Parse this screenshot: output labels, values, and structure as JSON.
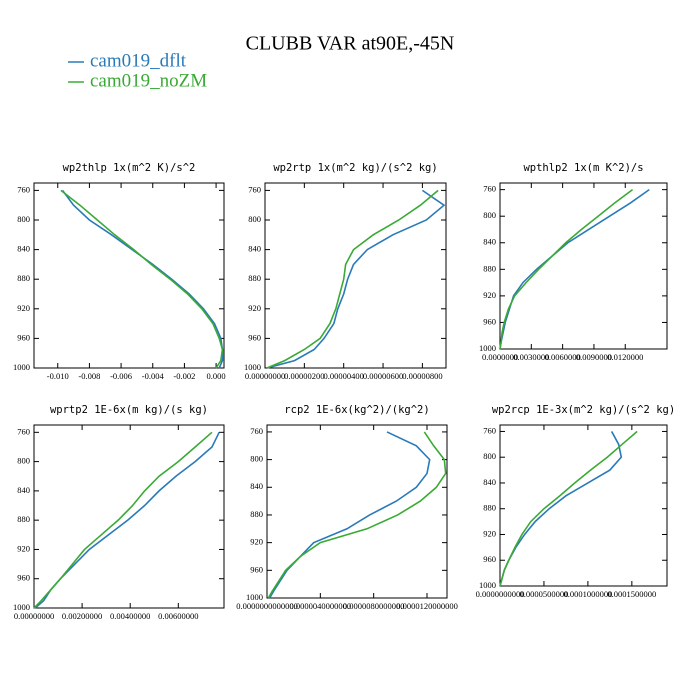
{
  "title": "CLUBB VAR at90E,-45N",
  "chart_data": [
    {
      "type": "line",
      "title": "wp2thlp  1x(m^2 K)/s^2",
      "levels": [
        1000,
        990,
        975,
        960,
        940,
        920,
        900,
        880,
        860,
        840,
        820,
        800,
        780,
        760
      ],
      "series": [
        {
          "name": "cam019_dflt",
          "color": "#2a7ab9",
          "values": [
            0.0002,
            0.0004,
            0.0004,
            0.0003,
            -0.0001,
            -0.0008,
            -0.0017,
            -0.0028,
            -0.004,
            -0.0053,
            -0.0066,
            -0.008,
            -0.009,
            -0.0097
          ]
        },
        {
          "name": "cam019_noZM",
          "color": "#3aaa35",
          "values": [
            0.0,
            0.0003,
            0.0004,
            0.0002,
            -0.0002,
            -0.0009,
            -0.0018,
            -0.0029,
            -0.0041,
            -0.0052,
            -0.0064,
            -0.0075,
            -0.0086,
            -0.0098
          ]
        }
      ],
      "xlim": [
        -0.0115,
        0.0005
      ],
      "xticks": [
        {
          "value": -0.01,
          "label": "-0.010"
        },
        {
          "value": -0.008,
          "label": "-0.008"
        },
        {
          "value": -0.006,
          "label": "-0.006"
        },
        {
          "value": -0.004,
          "label": "-0.004"
        },
        {
          "value": -0.002,
          "label": "-0.002"
        },
        {
          "value": 0,
          "label": "0.000"
        }
      ],
      "ylim": [
        1000,
        750
      ],
      "yticks": [
        760,
        800,
        840,
        880,
        920,
        960,
        1000
      ]
    },
    {
      "type": "line",
      "title": "wp2rtp  1x(m^2 kg)/(s^2 kg)",
      "levels": [
        1000,
        990,
        975,
        960,
        940,
        920,
        900,
        880,
        860,
        840,
        820,
        800,
        780,
        760
      ],
      "series": [
        {
          "name": "cam019_dflt",
          "color": "#2a7ab9",
          "values": [
            1e-07,
            1.5e-06,
            2.5e-06,
            3e-06,
            3.5e-06,
            3.7e-06,
            4e-06,
            4.2e-06,
            4.5e-06,
            5.2e-06,
            6.5e-06,
            8.2e-06,
            9.1e-06,
            8e-06
          ]
        },
        {
          "name": "cam019_noZM",
          "color": "#3aaa35",
          "values": [
            1e-07,
            1e-06,
            2e-06,
            2.8e-06,
            3.3e-06,
            3.6e-06,
            3.8e-06,
            4e-06,
            4.1e-06,
            4.5e-06,
            5.5e-06,
            6.8e-06,
            7.9e-06,
            8.8e-06
          ]
        }
      ],
      "xlim": [
        0,
        9.2e-06
      ],
      "xticks": [
        {
          "value": 0,
          "label": "0.00000000"
        },
        {
          "value": 2e-06,
          "label": "0.00000200"
        },
        {
          "value": 4e-06,
          "label": "0.00000400"
        },
        {
          "value": 6e-06,
          "label": "0.00000600"
        },
        {
          "value": 8e-06,
          "label": "0.00000800"
        }
      ],
      "ylim": [
        1000,
        750
      ],
      "yticks": [
        760,
        800,
        840,
        880,
        920,
        960,
        1000
      ]
    },
    {
      "type": "line",
      "title": "wpthlp2  1x(m K^2)/s",
      "levels": [
        1000,
        990,
        975,
        960,
        940,
        920,
        900,
        880,
        860,
        840,
        820,
        800,
        780,
        760
      ],
      "series": [
        {
          "name": "cam019_dflt",
          "color": "#2a7ab9",
          "values": [
            0,
            0.0001,
            0.0003,
            0.0005,
            0.0009,
            0.0013,
            0.0022,
            0.0035,
            0.005,
            0.0065,
            0.0085,
            0.0105,
            0.0125,
            0.0143
          ]
        },
        {
          "name": "cam019_noZM",
          "color": "#3aaa35",
          "values": [
            0,
            0.0001,
            0.0002,
            0.0004,
            0.0008,
            0.0014,
            0.0025,
            0.0037,
            0.005,
            0.0063,
            0.0078,
            0.0094,
            0.011,
            0.0127
          ]
        }
      ],
      "xlim": [
        0,
        0.016
      ],
      "xticks": [
        {
          "value": 0,
          "label": "0.0000000"
        },
        {
          "value": 0.003,
          "label": "0.0030000"
        },
        {
          "value": 0.006,
          "label": "0.0060000"
        },
        {
          "value": 0.009,
          "label": "0.0090000"
        },
        {
          "value": 0.012,
          "label": "0.0120000"
        }
      ],
      "ylim": [
        1000,
        750
      ],
      "yticks": [
        760,
        800,
        840,
        880,
        920,
        960,
        1000
      ]
    },
    {
      "type": "line",
      "title": "wprtp2  1E-6x(m kg)/(s kg)",
      "levels": [
        1000,
        990,
        975,
        960,
        940,
        920,
        900,
        880,
        860,
        840,
        820,
        800,
        780,
        760
      ],
      "series": [
        {
          "name": "cam019_dflt",
          "color": "#2a7ab9",
          "values": [
            5e-05,
            0.0004,
            0.0007,
            0.0011,
            0.0017,
            0.0023,
            0.0031,
            0.0039,
            0.0046,
            0.0052,
            0.0059,
            0.0067,
            0.0074,
            0.0077
          ]
        },
        {
          "name": "cam019_noZM",
          "color": "#3aaa35",
          "values": [
            0.0,
            0.0003,
            0.0007,
            0.0011,
            0.0016,
            0.0021,
            0.0028,
            0.0035,
            0.0041,
            0.0046,
            0.0052,
            0.006,
            0.0067,
            0.0074
          ]
        }
      ],
      "xlim": [
        0,
        0.0079
      ],
      "xticks": [
        {
          "value": 0,
          "label": "0.00000000"
        },
        {
          "value": 0.002,
          "label": "0.00200000"
        },
        {
          "value": 0.004,
          "label": "0.00400000"
        },
        {
          "value": 0.006,
          "label": "0.00600000"
        }
      ],
      "ylim": [
        1000,
        750
      ],
      "yticks": [
        760,
        800,
        840,
        880,
        920,
        960,
        1000
      ]
    },
    {
      "type": "line",
      "title": "rcp2  1E-6x(kg^2)/(kg^2)",
      "levels": [
        1000,
        990,
        975,
        960,
        940,
        920,
        900,
        880,
        860,
        840,
        820,
        800,
        780,
        760
      ],
      "series": [
        {
          "name": "cam019_dflt",
          "color": "#2a7ab9",
          "values": [
            2e-07,
            5e-07,
            1e-06,
            1.5e-06,
            2.5e-06,
            3.5e-06,
            6e-06,
            7.7e-06,
            9.7e-06,
            1.12e-05,
            1.2e-05,
            1.22e-05,
            1.12e-05,
            9e-06
          ]
        },
        {
          "name": "cam019_noZM",
          "color": "#3aaa35",
          "values": [
            1e-07,
            4e-07,
            9e-07,
            1.4e-06,
            2.5e-06,
            4e-06,
            7.5e-06,
            9.8e-06,
            1.15e-05,
            1.27e-05,
            1.34e-05,
            1.33e-05,
            1.25e-05,
            1.18e-05
          ]
        }
      ],
      "xlim": [
        0,
        1.35e-05
      ],
      "xticks": [
        {
          "value": 0,
          "label": "0.0000000000000"
        },
        {
          "value": 4e-06,
          "label": "0.0000040000000"
        },
        {
          "value": 8e-06,
          "label": "0.0000080000000"
        },
        {
          "value": 1.2e-05,
          "label": "0.0000120000000"
        }
      ],
      "ylim": [
        1000,
        750
      ],
      "yticks": [
        760,
        800,
        840,
        880,
        920,
        960,
        1000
      ]
    },
    {
      "type": "line",
      "title": "wp2rcp  1E-3x(m^2 kg)/(s^2 kg)",
      "levels": [
        1000,
        990,
        975,
        960,
        940,
        920,
        900,
        880,
        860,
        840,
        820,
        800,
        780,
        760
      ],
      "series": [
        {
          "name": "cam019_dflt",
          "color": "#2a7ab9",
          "values": [
            0,
            2e-06,
            5e-06,
            1e-05,
            1.8e-05,
            2.8e-05,
            4e-05,
            5.6e-05,
            7.5e-05,
            0.0001,
            0.000125,
            0.000138,
            0.000135,
            0.000127
          ]
        },
        {
          "name": "cam019_noZM",
          "color": "#3aaa35",
          "values": [
            0,
            2e-06,
            5e-06,
            1e-05,
            1.7e-05,
            2.5e-05,
            3.5e-05,
            5e-05,
            6.8e-05,
            8.5e-05,
            0.000103,
            0.000122,
            0.000139,
            0.000156
          ]
        }
      ],
      "xlim": [
        0,
        0.00019
      ],
      "xticks": [
        {
          "value": 0,
          "label": "0.0000000000"
        },
        {
          "value": 5e-05,
          "label": "0.0000500000"
        },
        {
          "value": 0.0001,
          "label": "0.0001000000"
        },
        {
          "value": 0.00015,
          "label": "0.0001500000"
        }
      ],
      "ylim": [
        1000,
        750
      ],
      "yticks": [
        760,
        800,
        840,
        880,
        920,
        960,
        1000
      ]
    }
  ]
}
